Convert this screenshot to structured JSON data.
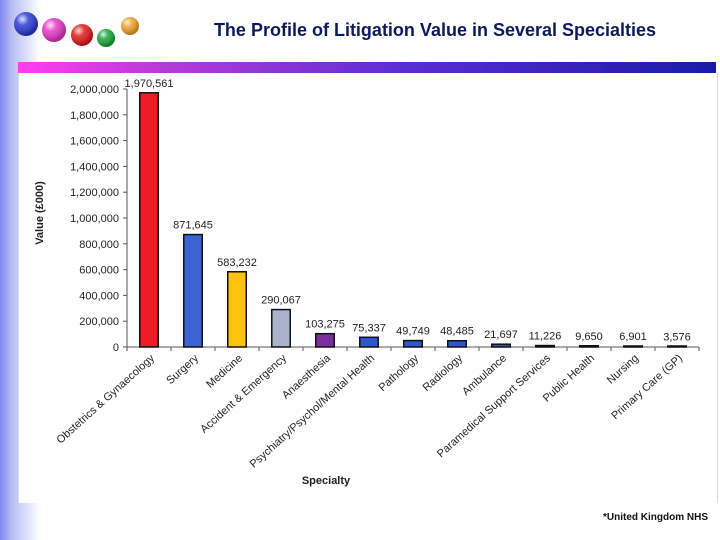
{
  "slide": {
    "title": "The Profile of Litigation Value in Several Specialties",
    "source": "*United Kingdom NHS"
  },
  "decor": {
    "ball_colors": [
      "#2b3cd6",
      "#e636c8",
      "#e01b1b",
      "#19a839",
      "#f0a22a"
    ]
  },
  "chart_data": {
    "type": "bar",
    "title": "",
    "xlabel": "Specialty",
    "ylabel": "Value (£000)",
    "ylim": [
      0,
      2000000
    ],
    "yticks": [
      0,
      200000,
      400000,
      600000,
      800000,
      1000000,
      1200000,
      1400000,
      1600000,
      1800000,
      2000000
    ],
    "ytick_labels": [
      "0",
      "200,000",
      "400,000",
      "600,000",
      "800,000",
      "1,000,000",
      "1,200,000",
      "1,400,000",
      "1,600,000",
      "1,800,000",
      "2,000,000"
    ],
    "categories": [
      "Obstetrics & Gynaecology",
      "Surgery",
      "Medicine",
      "Accident & Emergency",
      "Anaesthesia",
      "Psychiatry/Psychol/Mental Health",
      "Pathology",
      "Radiology",
      "Ambulance",
      "Paramedical Support Services",
      "Public Health",
      "Nursing",
      "Primary Care (GP)"
    ],
    "values": [
      1970561,
      871645,
      583232,
      290067,
      103275,
      75337,
      49749,
      48485,
      21697,
      11226,
      9650,
      6901,
      3576
    ],
    "value_labels": [
      "1,970,561",
      "871,645",
      "583,232",
      "290,067",
      "103,275",
      "75,337",
      "49,749",
      "48,485",
      "21,697",
      "11,226",
      "9,650",
      "6,901",
      "3,576"
    ],
    "bar_colors": [
      "#ee1c24",
      "#3a63d6",
      "#ffc20e",
      "#a9b3cc",
      "#7b2f9e",
      "#2f55cf",
      "#2f55cf",
      "#2f55cf",
      "#2f55cf",
      "#2f55cf",
      "#2f55cf",
      "#2f55cf",
      "#2f55cf"
    ]
  }
}
